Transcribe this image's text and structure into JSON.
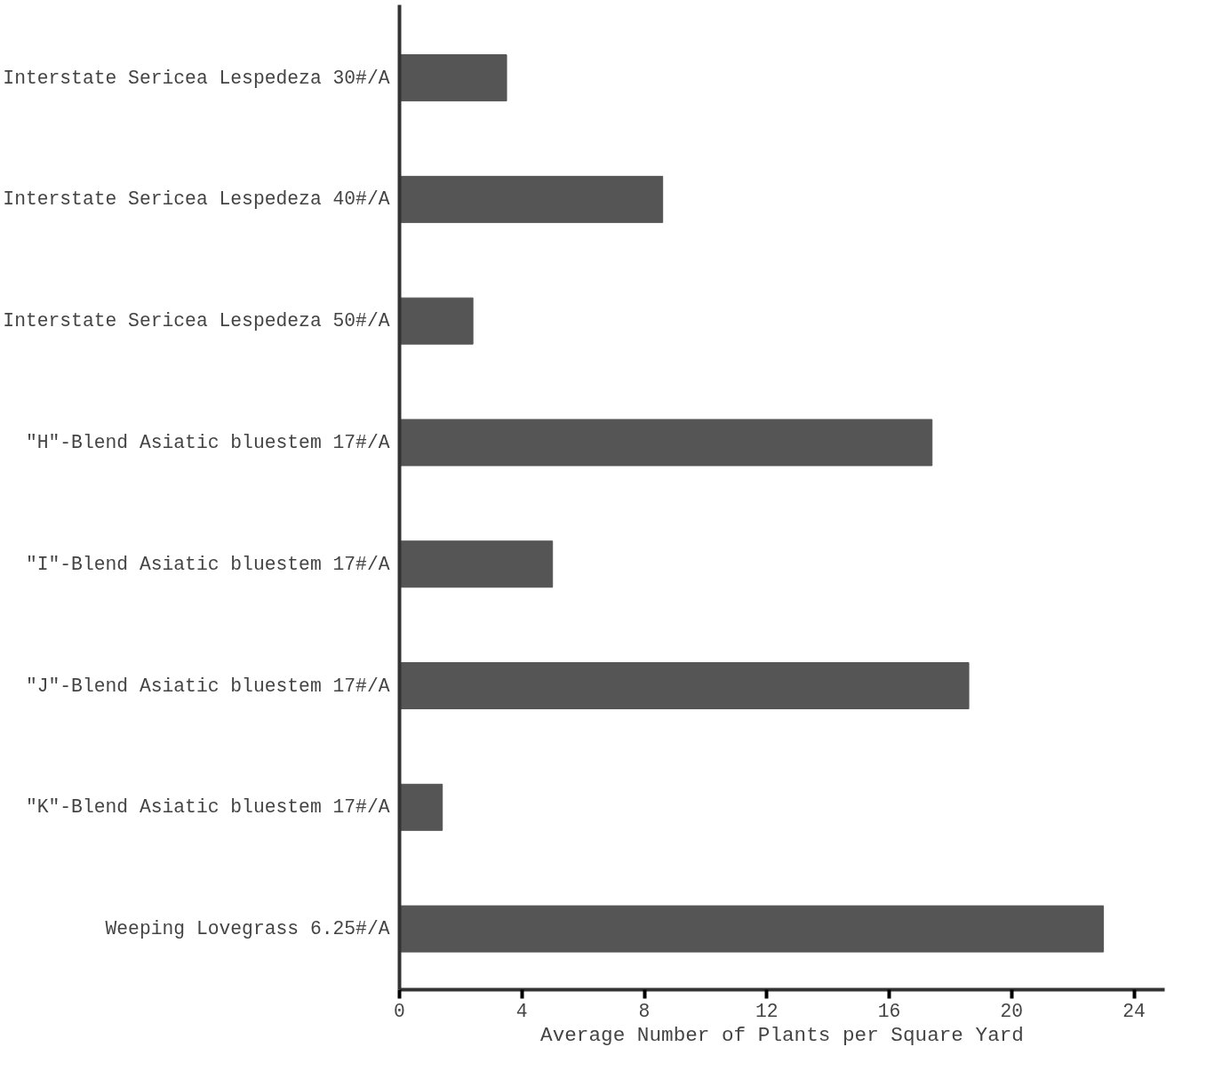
{
  "chart_data": {
    "type": "bar",
    "orientation": "horizontal",
    "xlabel": "Average Number of Plants per Square Yard",
    "categories": [
      "Interstate Sericea Lespedeza 30#/A",
      "Interstate Sericea Lespedeza 40#/A",
      "Interstate Sericea Lespedeza 50#/A",
      "\"H\"-Blend Asiatic bluestem 17#/A",
      "\"I\"-Blend Asiatic bluestem 17#/A",
      "\"J\"-Blend Asiatic bluestem 17#/A",
      "\"K\"-Blend Asiatic bluestem 17#/A",
      "Weeping Lovegrass 6.25#/A"
    ],
    "values": [
      3.5,
      8.6,
      2.4,
      17.4,
      5.0,
      18.6,
      1.4,
      23.0
    ],
    "color": "#555555",
    "xlim": [
      0,
      25
    ],
    "xticks": [
      0,
      4,
      8,
      12,
      16,
      20,
      24
    ],
    "grid": false
  }
}
